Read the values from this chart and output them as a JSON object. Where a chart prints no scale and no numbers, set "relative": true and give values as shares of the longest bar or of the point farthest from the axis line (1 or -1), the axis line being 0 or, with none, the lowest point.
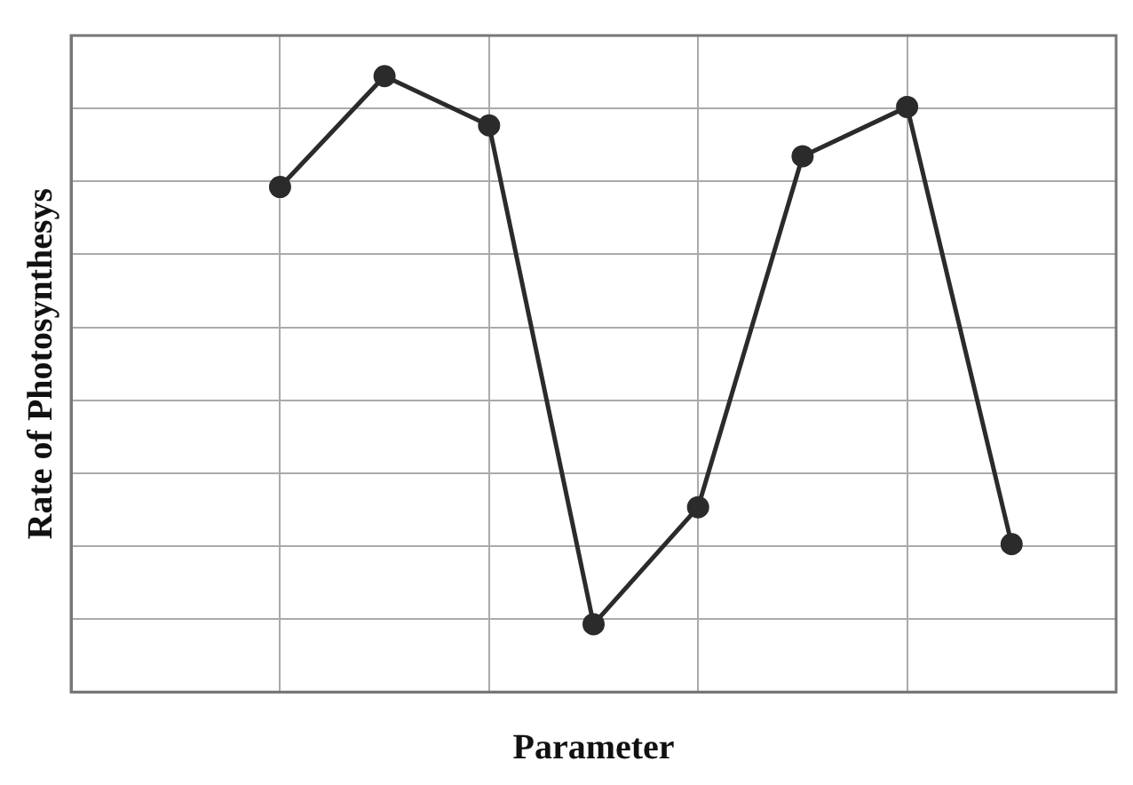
{
  "chart_data": {
    "type": "line",
    "xlabel": "Parameter",
    "ylabel": "Rate of Photosynthesys",
    "relative": true,
    "grid": true,
    "marker": "circle",
    "line_style": "solid",
    "categories": [
      null,
      null,
      null,
      null,
      null,
      null,
      null,
      null,
      null,
      null,
      null
    ],
    "series": [
      {
        "color": "#2b2b2b",
        "values": [
          null,
          null,
          0.82,
          1,
          0.92,
          0.11,
          0.3,
          0.87,
          0.95,
          0.24,
          null
        ]
      }
    ]
  }
}
